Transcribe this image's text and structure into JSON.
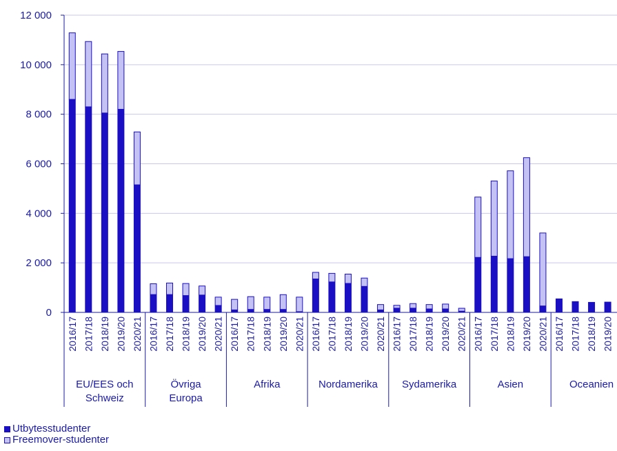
{
  "colors": {
    "utbytes": "#1a0fc2",
    "freemover": "#c4c2f4",
    "freemover_border": "#1a0fc2",
    "grid": "#c8c8ec",
    "axis": "#1a1aa6",
    "text": "#1a1aa6"
  },
  "chart_data": {
    "type": "bar",
    "stacked": true,
    "years": [
      "2016/17",
      "2017/18",
      "2018/19",
      "2019/20",
      "2020/21"
    ],
    "groups": [
      "EU/EES och Schweiz",
      "Övriga Europa",
      "Afrika",
      "Nordamerika",
      "Sydamerika",
      "Asien",
      "Oceanien"
    ],
    "group_label_lines": [
      [
        "EU/EES och",
        "Schweiz"
      ],
      [
        "Övriga",
        "Europa"
      ],
      [
        "Afrika"
      ],
      [
        "Nordamerika"
      ],
      [
        "Sydamerika"
      ],
      [
        "Asien"
      ],
      [
        "Oceanien"
      ]
    ],
    "series": [
      {
        "name": "Utbytesstudenter",
        "values": [
          [
            8600,
            8300,
            8050,
            8200,
            5150
          ],
          [
            720,
            720,
            680,
            700,
            280
          ],
          [
            100,
            120,
            120,
            120,
            30
          ],
          [
            1350,
            1230,
            1170,
            1050,
            100
          ],
          [
            170,
            170,
            140,
            140,
            50
          ],
          [
            2220,
            2270,
            2170,
            2250,
            260
          ],
          [
            560,
            450,
            420,
            430,
            40
          ]
        ]
      },
      {
        "name": "Freemover-studenter",
        "values": [
          [
            2700,
            2650,
            2400,
            2350,
            2150
          ],
          [
            450,
            480,
            500,
            380,
            350
          ],
          [
            440,
            530,
            510,
            610,
            600
          ],
          [
            280,
            360,
            390,
            350,
            230
          ],
          [
            130,
            200,
            190,
            210,
            130
          ],
          [
            2450,
            3050,
            3560,
            4010,
            2960
          ],
          [
            0,
            0,
            0,
            0,
            0
          ]
        ]
      }
    ],
    "ylim": [
      0,
      12000
    ],
    "yticks": [
      0,
      2000,
      4000,
      6000,
      8000,
      10000,
      12000
    ],
    "ytick_labels": [
      "0",
      "2 000",
      "4 000",
      "6 000",
      "8 000",
      "10 000",
      "12 000"
    ],
    "grid": true,
    "legend_position": "bottom-left",
    "title": "",
    "xlabel": "",
    "ylabel": ""
  }
}
